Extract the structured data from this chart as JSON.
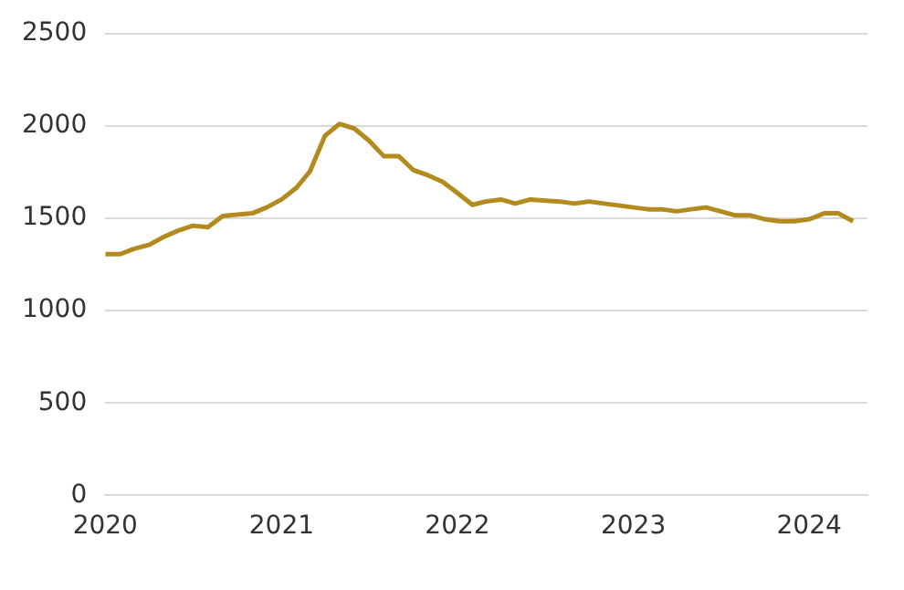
{
  "chart_data": {
    "type": "line",
    "x": [
      "2020-01",
      "2020-02",
      "2020-03",
      "2020-04",
      "2020-05",
      "2020-06",
      "2020-07",
      "2020-08",
      "2020-09",
      "2020-11",
      "2020-12",
      "2021-01",
      "2021-02",
      "2021-03",
      "2021-04",
      "2021-05",
      "2021-06",
      "2021-07",
      "2021-08",
      "2021-09",
      "2021-10",
      "2021-11",
      "2021-12",
      "2022-01",
      "2022-02",
      "2022-03",
      "2022-04",
      "2022-05",
      "2022-06",
      "2022-08",
      "2022-09",
      "2022-10",
      "2022-11",
      "2022-12",
      "2023-01",
      "2023-02",
      "2023-03",
      "2023-04",
      "2023-05",
      "2023-06",
      "2023-07",
      "2023-08",
      "2023-09",
      "2023-10",
      "2023-11",
      "2023-12",
      "2024-01",
      "2024-02",
      "2024-03",
      "2024-04"
    ],
    "series": [
      {
        "color": "#b38a1e",
        "values": [
          1306,
          1306,
          1335,
          1356,
          1399,
          1434,
          1460,
          1452,
          1513,
          1527,
          1559,
          1602,
          1666,
          1755,
          1947,
          2011,
          1986,
          1922,
          1837,
          1837,
          1762,
          1733,
          1698,
          1637,
          1573,
          1591,
          1602,
          1580,
          1602,
          1591,
          1580,
          1591,
          1580,
          1570,
          1559,
          1549,
          1549,
          1538,
          1549,
          1559,
          1538,
          1516,
          1516,
          1495,
          1484,
          1484,
          1495,
          1527,
          1527,
          1484
        ]
      }
    ],
    "xlim": [
      "2020-01",
      "2024-05"
    ],
    "xticks": [
      {
        "value": "2020",
        "label": "2020"
      },
      {
        "value": "2021",
        "label": "2021"
      },
      {
        "value": "2022",
        "label": "2022"
      },
      {
        "value": "2023",
        "label": "2023"
      },
      {
        "value": "2024",
        "label": "2024"
      }
    ],
    "ylim": [
      0,
      2500
    ],
    "yticks": [
      0,
      500,
      1000,
      1500,
      2000,
      2500
    ],
    "grid": "y",
    "legend": false,
    "marker": "none",
    "line_style": "solid"
  }
}
